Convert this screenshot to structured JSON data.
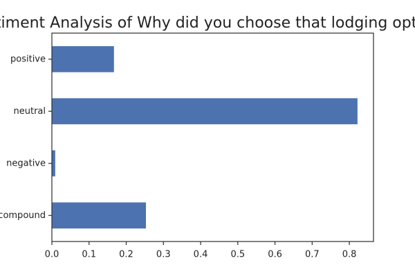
{
  "chart_data": {
    "type": "bar",
    "orientation": "horizontal",
    "title": "Sentiment Analysis of Why did you choose that lodging option?",
    "xlabel": "",
    "ylabel": "",
    "categories": [
      "compound",
      "negative",
      "neutral",
      "positive"
    ],
    "values": [
      0.253,
      0.009,
      0.822,
      0.167
    ],
    "xlim": [
      0.0,
      0.865
    ],
    "x_ticks": [
      "0.0",
      "0.1",
      "0.2",
      "0.3",
      "0.4",
      "0.5",
      "0.6",
      "0.7",
      "0.8"
    ],
    "bar_color": "#4c72b0",
    "grid": false
  }
}
